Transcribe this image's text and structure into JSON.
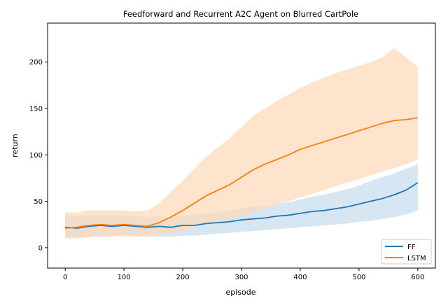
{
  "chart_data": {
    "type": "line",
    "title": "Feedforward and Recurrent A2C Agent on Blurred CartPole",
    "xlabel": "episode",
    "ylabel": "return",
    "xlim": [
      -30,
      630
    ],
    "ylim": [
      -22,
      242
    ],
    "xticks": [
      0,
      100,
      200,
      300,
      400,
      500,
      600
    ],
    "yticks": [
      0,
      50,
      100,
      150,
      200
    ],
    "grid": false,
    "legend": "bottom-right",
    "series": [
      {
        "name": "FF",
        "color": "#1f77b4",
        "band_fill": "#c6dbee",
        "x": [
          0,
          20,
          40,
          60,
          80,
          100,
          120,
          140,
          160,
          180,
          200,
          220,
          240,
          260,
          280,
          300,
          320,
          340,
          360,
          380,
          400,
          420,
          440,
          460,
          480,
          500,
          520,
          540,
          560,
          580,
          600
        ],
        "mean": [
          22,
          21,
          23,
          24,
          23,
          24,
          23,
          22,
          23,
          22,
          24,
          24,
          26,
          27,
          28,
          30,
          31,
          32,
          34,
          35,
          37,
          39,
          40,
          42,
          44,
          47,
          50,
          53,
          57,
          62,
          70
        ],
        "upper": [
          35,
          34,
          35,
          35,
          34,
          35,
          34,
          33,
          34,
          33,
          34,
          35,
          37,
          38,
          40,
          42,
          44,
          45,
          47,
          49,
          52,
          55,
          57,
          60,
          63,
          67,
          72,
          76,
          80,
          85,
          90
        ],
        "lower": [
          12,
          11,
          12,
          13,
          13,
          14,
          13,
          12,
          12,
          12,
          13,
          13,
          14,
          15,
          16,
          17,
          18,
          19,
          20,
          21,
          22,
          23,
          24,
          25,
          26,
          28,
          29,
          31,
          33,
          36,
          40
        ]
      },
      {
        "name": "LSTM",
        "color": "#ff7f0e",
        "band_fill": "#fdd9b8",
        "x": [
          0,
          20,
          40,
          60,
          80,
          100,
          120,
          140,
          160,
          180,
          200,
          220,
          240,
          260,
          280,
          300,
          320,
          340,
          360,
          380,
          400,
          420,
          440,
          460,
          480,
          500,
          520,
          540,
          560,
          580,
          600
        ],
        "mean": [
          21,
          22,
          24,
          25,
          24,
          25,
          24,
          23,
          27,
          33,
          40,
          48,
          56,
          62,
          68,
          76,
          84,
          90,
          95,
          100,
          106,
          110,
          114,
          118,
          122,
          126,
          130,
          134,
          137,
          138,
          140
        ],
        "upper": [
          38,
          38,
          40,
          40,
          40,
          40,
          39,
          40,
          48,
          60,
          72,
          85,
          98,
          108,
          118,
          130,
          142,
          150,
          158,
          165,
          172,
          178,
          183,
          188,
          192,
          196,
          200,
          205,
          215,
          205,
          195
        ],
        "lower": [
          10,
          10,
          11,
          12,
          12,
          12,
          12,
          12,
          14,
          16,
          18,
          22,
          25,
          28,
          31,
          34,
          38,
          42,
          46,
          50,
          54,
          58,
          62,
          66,
          70,
          74,
          78,
          82,
          86,
          90,
          95
        ]
      }
    ]
  }
}
